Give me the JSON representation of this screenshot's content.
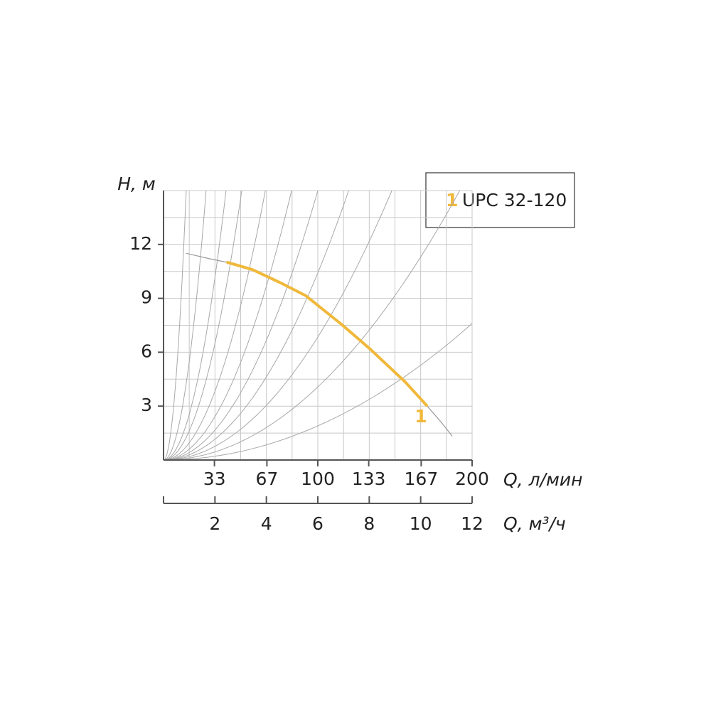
{
  "chart_data": {
    "type": "line",
    "ylabel": "H, м",
    "xlabel": "Q, л/мин",
    "x2label": "Q, м³/ч",
    "xlim": [
      0,
      200
    ],
    "xticks": [
      33,
      67,
      100,
      133,
      167,
      200
    ],
    "x2lim": [
      0,
      12
    ],
    "x2ticks": [
      2,
      4,
      6,
      8,
      10,
      12
    ],
    "ylim": [
      0,
      15
    ],
    "yticks": [
      3,
      6,
      9,
      12
    ],
    "xgrid_m3h": [
      1,
      2,
      3,
      4,
      5,
      6,
      7,
      8,
      9,
      10,
      11,
      12
    ],
    "ygrid": [
      1.5,
      3,
      4.5,
      6,
      7.5,
      9,
      10.5,
      12,
      13.5,
      15
    ],
    "grid": true,
    "system_curves_q_at_top": [
      14.7,
      27.6,
      40.5,
      50.7,
      66,
      83,
      100,
      120,
      148,
      192,
      281
    ],
    "envelope": {
      "color": "#9a9a9a",
      "x": [
        15,
        30,
        41.5,
        57.6,
        92,
        115,
        133.6,
        156.7,
        170.5,
        180,
        187
      ],
      "y": [
        11.5,
        11.2,
        11.0,
        10.6,
        9.16,
        7.58,
        6.2,
        4.34,
        3.04,
        2.1,
        1.34
      ]
    },
    "series": [
      {
        "name": "UPC 32-120",
        "label": "1",
        "color": "#f0b83a",
        "x": [
          41.5,
          57.6,
          75,
          92,
          115,
          133.6,
          156.7,
          170.5
        ],
        "y": [
          11.0,
          10.6,
          9.9,
          9.16,
          7.58,
          6.2,
          4.34,
          3.04
        ]
      }
    ],
    "legend": "top-right"
  }
}
